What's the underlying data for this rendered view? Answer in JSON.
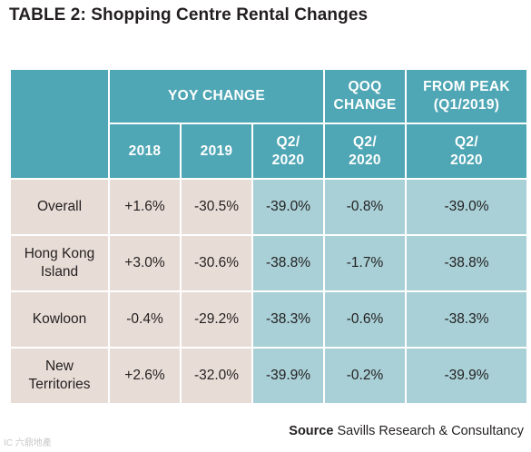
{
  "title": "TABLE 2: Shopping Centre Rental Changes",
  "headers": {
    "yoy": "YOY CHANGE",
    "qoq_line1": "QOQ",
    "qoq_line2": "CHANGE",
    "peak_line1": "FROM PEAK",
    "peak_line2": "(Q1/2019)",
    "col_2018": "2018",
    "col_2019": "2019",
    "q2_line1": "Q2/",
    "q2_line2": "2020"
  },
  "rows": [
    {
      "label_line1": "Overall",
      "label_line2": "",
      "y2018": "+1.6%",
      "y2019": "-30.5%",
      "yq2": "-39.0%",
      "qoq": "-0.8%",
      "peak": "-39.0%"
    },
    {
      "label_line1": "Hong Kong",
      "label_line2": "Island",
      "y2018": "+3.0%",
      "y2019": "-30.6%",
      "yq2": "-38.8%",
      "qoq": "-1.7%",
      "peak": "-38.8%"
    },
    {
      "label_line1": "Kowloon",
      "label_line2": "",
      "y2018": "-0.4%",
      "y2019": "-29.2%",
      "yq2": "-38.3%",
      "qoq": "-0.6%",
      "peak": "-38.3%"
    },
    {
      "label_line1": "New",
      "label_line2": "Territories",
      "y2018": "+2.6%",
      "y2019": "-32.0%",
      "yq2": "-39.9%",
      "qoq": "-0.2%",
      "peak": "-39.9%"
    }
  ],
  "source": {
    "label": "Source",
    "text": " Savills Research & Consultancy"
  },
  "watermark": "IC 六鼎地產"
}
